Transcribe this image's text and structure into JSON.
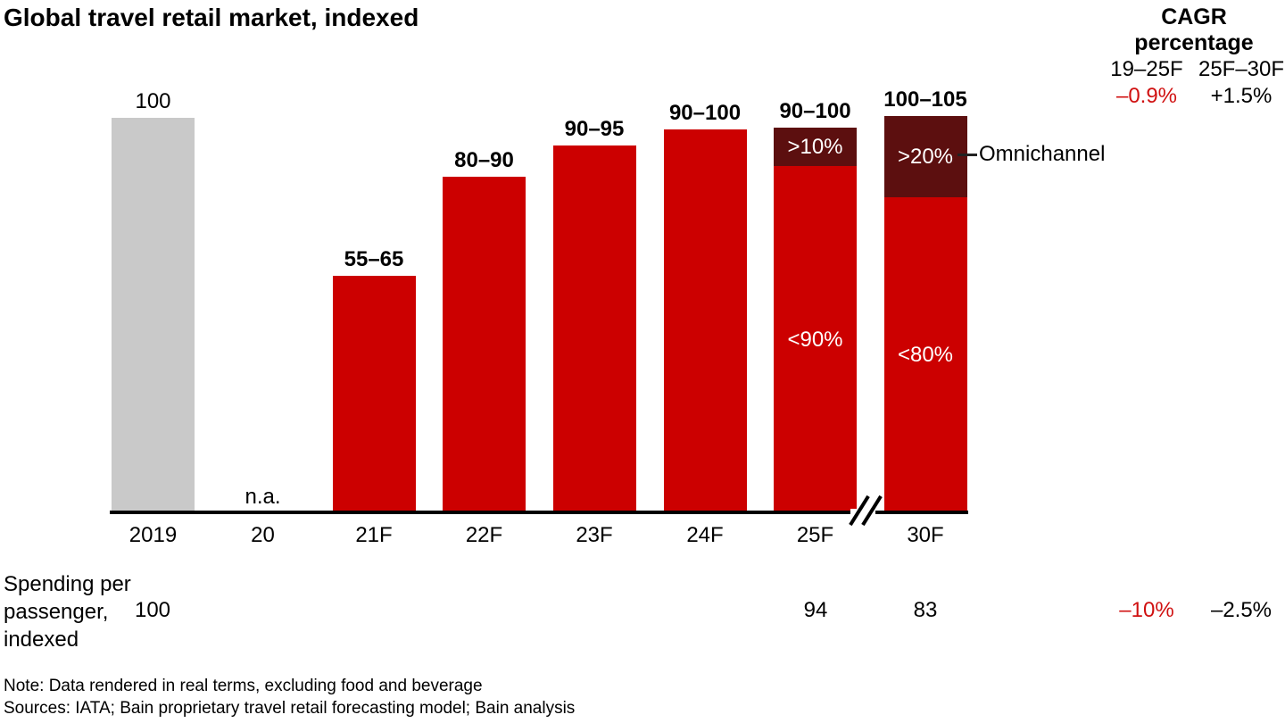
{
  "title": "Global travel retail market, indexed",
  "chart_data": {
    "type": "bar",
    "title": "Global travel retail market, indexed",
    "unit": "indexed, 2019 = 100",
    "categories": [
      "2019",
      "20",
      "21F",
      "22F",
      "23F",
      "24F",
      "25F",
      "30F"
    ],
    "bars": [
      {
        "category": "2019",
        "label": "100",
        "value": 100,
        "color": "gray",
        "bold_label": false
      },
      {
        "category": "20",
        "label": "n.a.",
        "value": null,
        "color": "none",
        "bold_label": false
      },
      {
        "category": "21F",
        "label": "55–65",
        "value": 60,
        "color": "red",
        "bold_label": true
      },
      {
        "category": "22F",
        "label": "80–90",
        "value": 85,
        "color": "red",
        "bold_label": true
      },
      {
        "category": "23F",
        "label": "90–95",
        "value": 93,
        "color": "red",
        "bold_label": true
      },
      {
        "category": "24F",
        "label": "90–100",
        "value": 97,
        "color": "red",
        "bold_label": true
      },
      {
        "category": "25F",
        "label": "90–100",
        "value": 97.5,
        "color": "red",
        "bold_label": true,
        "omni_fraction": 0.1,
        "omni_label": ">10%",
        "body_label": "<90%"
      },
      {
        "category": "30F",
        "label": "100–105",
        "value": 100.5,
        "color": "red",
        "bold_label": true,
        "omni_fraction": 0.205,
        "omni_label": ">20%",
        "body_label": "<80%"
      }
    ],
    "axis_break_between": [
      "25F",
      "30F"
    ],
    "annotation": {
      "label": "Omnichannel",
      "target": "30F top segment"
    },
    "legend_position": "none",
    "grid": false,
    "colors": {
      "gray": "#c9c9c9",
      "red": "#cc0000",
      "dark_red": "#5c0f0f",
      "negative_text": "#d01111"
    }
  },
  "cagr": {
    "header1": "CAGR",
    "header2": "percentage",
    "cols": [
      "19–25F",
      "25F–30F"
    ],
    "market_values": [
      "–0.9%",
      "+1.5%"
    ],
    "spending_values": [
      "–10%",
      "–2.5%"
    ]
  },
  "annotation": {
    "label": "Omnichannel"
  },
  "spending": {
    "label": "Spending per passenger, indexed",
    "values": {
      "y2019": "100",
      "y25f": "94",
      "y30f": "83"
    }
  },
  "notes": {
    "note": "Note: Data rendered in real terms, excluding food and beverage",
    "sources": "Sources: IATA; Bain proprietary travel retail forecasting model; Bain analysis"
  }
}
